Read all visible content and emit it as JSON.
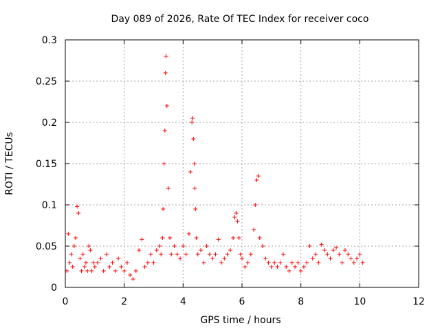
{
  "chart_data": {
    "type": "scatter",
    "title": "Day 089 of 2026, Rate Of TEC Index for receiver coco",
    "xlabel": "GPS time / hours",
    "ylabel": "ROTI / TECUs",
    "xlim": [
      0,
      12
    ],
    "ylim": [
      0,
      0.3
    ],
    "xticks": [
      0,
      2,
      4,
      6,
      8,
      10,
      12
    ],
    "xtick_labels": [
      "0",
      "2",
      "4",
      "6",
      "8",
      "10",
      "12"
    ],
    "yticks": [
      0,
      0.05,
      0.1,
      0.15,
      0.2,
      0.25,
      0.3
    ],
    "ytick_labels": [
      "0",
      "0.05",
      "0.1",
      "0.15",
      "0.2",
      "0.25",
      "0.3"
    ],
    "grid": true,
    "marker": "+",
    "marker_color": "#ff0000",
    "series": [
      {
        "name": "ROTI",
        "color": "#ff0000",
        "x": [
          0.05,
          0.1,
          0.15,
          0.2,
          0.25,
          0.3,
          0.35,
          0.4,
          0.45,
          0.5,
          0.55,
          0.6,
          0.65,
          0.7,
          0.75,
          0.8,
          0.85,
          0.9,
          0.95,
          1.0,
          1.1,
          1.2,
          1.3,
          1.4,
          1.5,
          1.6,
          1.7,
          1.8,
          1.9,
          2.0,
          2.1,
          2.2,
          2.3,
          2.4,
          2.5,
          2.6,
          2.7,
          2.8,
          2.9,
          3.0,
          3.1,
          3.2,
          3.25,
          3.3,
          3.32,
          3.35,
          3.38,
          3.4,
          3.42,
          3.45,
          3.5,
          3.55,
          3.6,
          3.7,
          3.8,
          3.9,
          4.0,
          4.1,
          4.2,
          4.25,
          4.3,
          4.32,
          4.35,
          4.38,
          4.4,
          4.42,
          4.45,
          4.5,
          4.6,
          4.7,
          4.8,
          4.9,
          5.0,
          5.1,
          5.2,
          5.3,
          5.4,
          5.5,
          5.6,
          5.7,
          5.75,
          5.8,
          5.85,
          5.9,
          5.95,
          6.0,
          6.1,
          6.2,
          6.3,
          6.4,
          6.45,
          6.5,
          6.55,
          6.6,
          6.7,
          6.8,
          6.9,
          7.0,
          7.1,
          7.2,
          7.3,
          7.4,
          7.5,
          7.6,
          7.7,
          7.8,
          7.9,
          8.0,
          8.1,
          8.2,
          8.3,
          8.4,
          8.5,
          8.6,
          8.7,
          8.8,
          8.9,
          9.0,
          9.1,
          9.2,
          9.3,
          9.4,
          9.5,
          9.6,
          9.7,
          9.8,
          9.9,
          10.0,
          10.1
        ],
        "y": [
          0.02,
          0.065,
          0.03,
          0.04,
          0.025,
          0.05,
          0.06,
          0.098,
          0.09,
          0.035,
          0.02,
          0.04,
          0.025,
          0.03,
          0.02,
          0.05,
          0.045,
          0.02,
          0.03,
          0.025,
          0.03,
          0.035,
          0.02,
          0.04,
          0.025,
          0.03,
          0.02,
          0.035,
          0.025,
          0.02,
          0.03,
          0.015,
          0.01,
          0.02,
          0.045,
          0.058,
          0.025,
          0.03,
          0.04,
          0.03,
          0.045,
          0.05,
          0.04,
          0.06,
          0.095,
          0.15,
          0.19,
          0.26,
          0.28,
          0.22,
          0.12,
          0.06,
          0.04,
          0.05,
          0.04,
          0.035,
          0.05,
          0.04,
          0.065,
          0.14,
          0.2,
          0.205,
          0.18,
          0.15,
          0.12,
          0.095,
          0.06,
          0.04,
          0.045,
          0.03,
          0.05,
          0.04,
          0.035,
          0.04,
          0.058,
          0.03,
          0.035,
          0.04,
          0.045,
          0.06,
          0.085,
          0.09,
          0.08,
          0.06,
          0.04,
          0.035,
          0.025,
          0.03,
          0.04,
          0.07,
          0.1,
          0.13,
          0.135,
          0.06,
          0.05,
          0.035,
          0.03,
          0.025,
          0.03,
          0.025,
          0.03,
          0.04,
          0.025,
          0.02,
          0.03,
          0.025,
          0.03,
          0.02,
          0.025,
          0.03,
          0.05,
          0.035,
          0.04,
          0.03,
          0.052,
          0.045,
          0.04,
          0.035,
          0.045,
          0.048,
          0.04,
          0.03,
          0.045,
          0.04,
          0.035,
          0.03,
          0.035,
          0.04,
          0.03
        ]
      }
    ]
  }
}
